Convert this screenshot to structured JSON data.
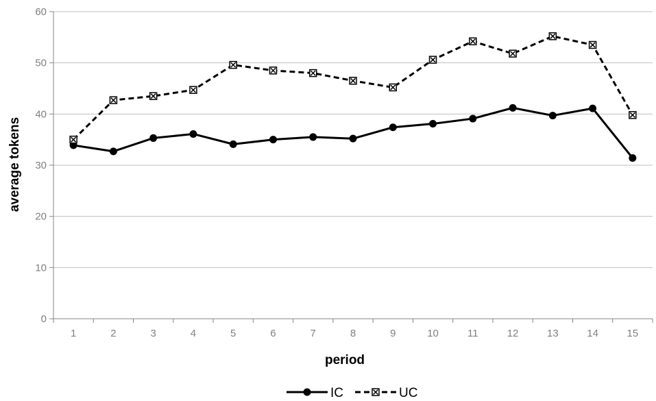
{
  "chart_data": {
    "type": "line",
    "title": "",
    "xlabel": "period",
    "ylabel": "average tokens",
    "categories": [
      "1",
      "2",
      "3",
      "4",
      "5",
      "6",
      "7",
      "8",
      "9",
      "10",
      "11",
      "12",
      "13",
      "14",
      "15"
    ],
    "ylim": [
      0,
      60
    ],
    "yticks": [
      0,
      10,
      20,
      30,
      40,
      50,
      60
    ],
    "grid": "horizontal",
    "legend_position": "bottom",
    "series": [
      {
        "name": "IC",
        "line_style": "solid",
        "marker": "filled-circle",
        "color": "#000000",
        "values": [
          33.9,
          32.7,
          35.3,
          36.1,
          34.1,
          35.0,
          35.5,
          35.2,
          37.4,
          38.1,
          39.1,
          41.2,
          39.7,
          41.1,
          31.4
        ]
      },
      {
        "name": "UC",
        "line_style": "dashed",
        "marker": "crossed-square",
        "color": "#000000",
        "values": [
          35.0,
          42.7,
          43.5,
          44.7,
          49.6,
          48.5,
          48.0,
          46.5,
          45.2,
          50.6,
          54.2,
          51.8,
          55.2,
          53.5,
          39.8
        ]
      }
    ]
  }
}
